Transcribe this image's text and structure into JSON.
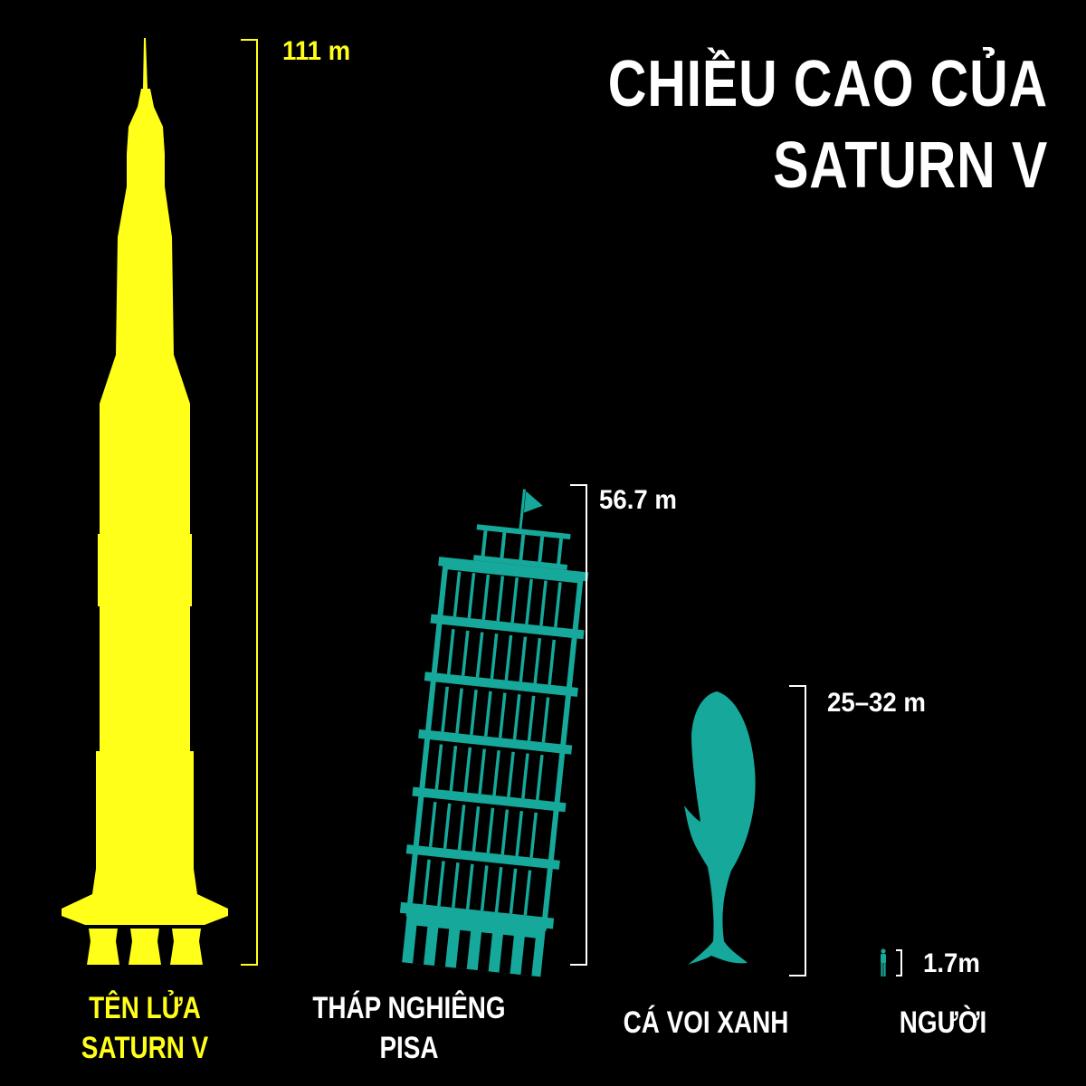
{
  "title": {
    "line1": "CHIỀU CAO CỦA",
    "line2": "SATURN V"
  },
  "colors": {
    "background": "#000000",
    "rocket": "#ffff1a",
    "teal": "#16a89a",
    "text": "#ffffff"
  },
  "subjects": {
    "rocket": {
      "name1": "TÊN LỬA",
      "name2": "SATURN V",
      "height_label": "111 m",
      "height_m": 111
    },
    "tower": {
      "name1": "THÁP NGHIÊNG",
      "name2": "PISA",
      "height_label": "56.7 m",
      "height_m": 56.7
    },
    "whale": {
      "name1": "CÁ VOI XANH",
      "height_label": "25–32 m",
      "height_m": [
        25,
        32
      ]
    },
    "human": {
      "name1": "NGƯỜI",
      "height_label": "1.7m",
      "height_m": 1.7
    }
  },
  "icons": [
    "saturn-v-rocket-icon",
    "pisa-tower-icon",
    "blue-whale-icon",
    "human-figure-icon"
  ]
}
